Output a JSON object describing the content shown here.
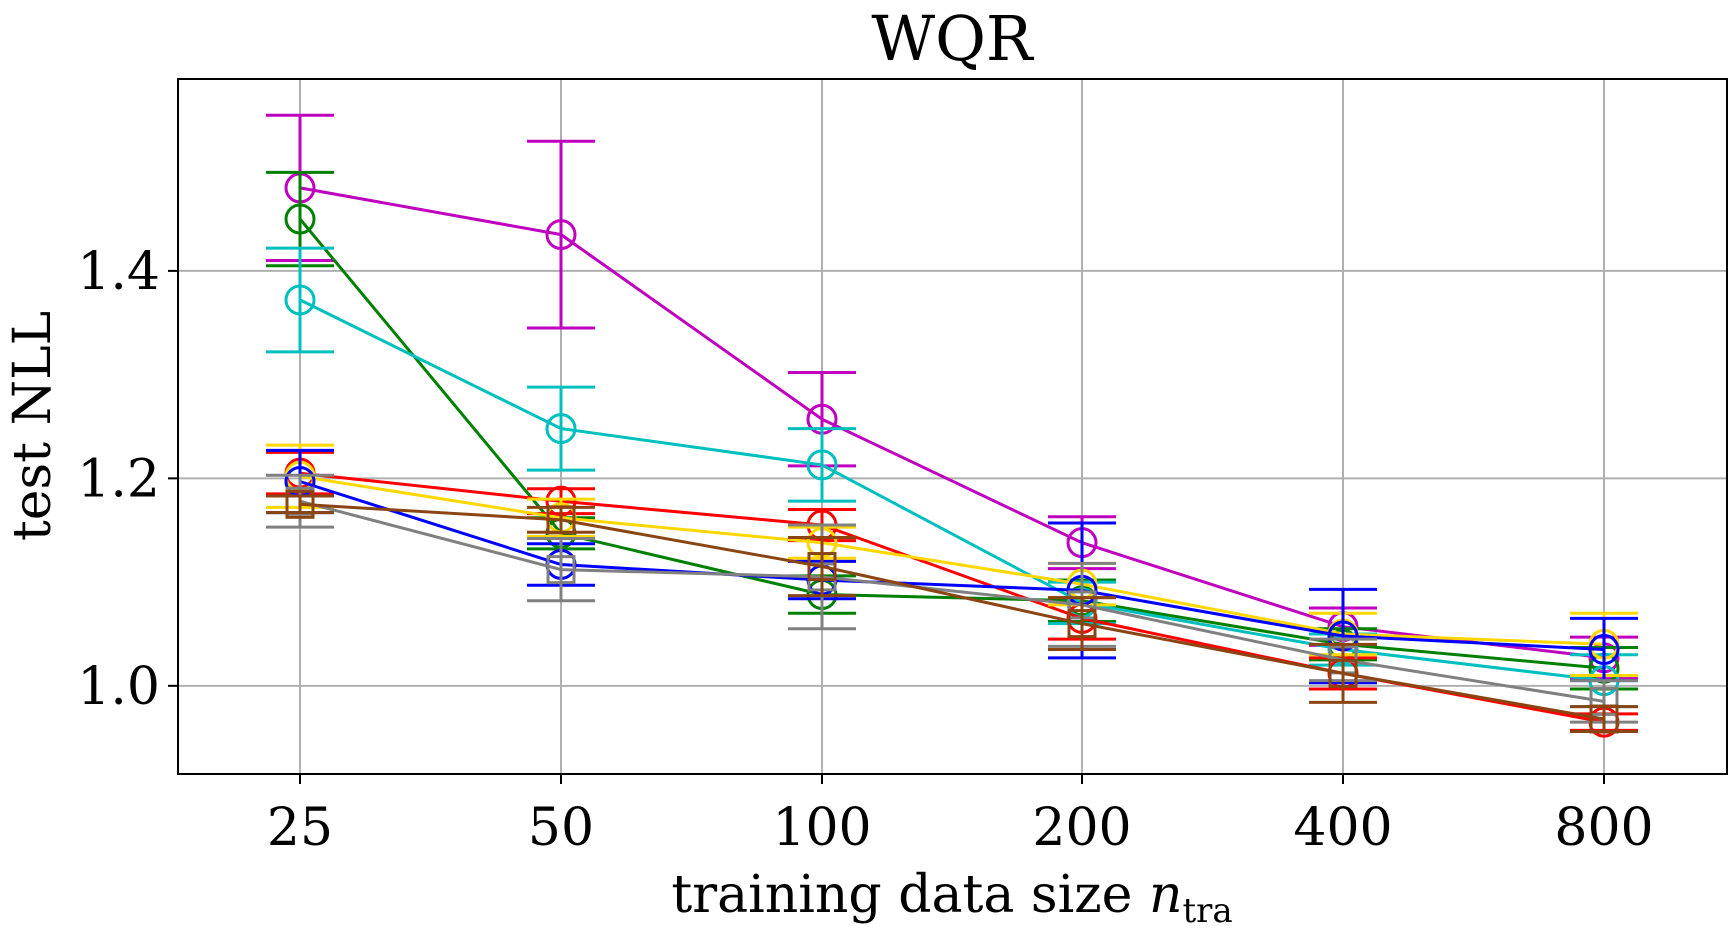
{
  "chart_data": {
    "type": "line",
    "title": "WQR",
    "xlabel": "training data size",
    "xlabel_symbol": "n",
    "xlabel_subscript": "tra",
    "ylabel": "test NLL",
    "categories": [
      "25",
      "50",
      "100",
      "200",
      "400",
      "800"
    ],
    "x": [
      25,
      50,
      100,
      200,
      400,
      800
    ],
    "xscale": "log2",
    "ylim": [
      0.915,
      1.585
    ],
    "yticks": [
      1.0,
      1.2,
      1.4
    ],
    "ytick_labels": [
      "1.0",
      "1.2",
      "1.4"
    ],
    "grid": true,
    "series": [
      {
        "name": "magenta",
        "color": "#bf00bf",
        "marker": "circle",
        "values": [
          1.48,
          1.435,
          1.257,
          1.138,
          1.057,
          1.027
        ],
        "errors": [
          0.07,
          0.09,
          0.045,
          0.025,
          0.018,
          0.02
        ]
      },
      {
        "name": "green",
        "color": "#008000",
        "marker": "circle",
        "values": [
          1.45,
          1.147,
          1.088,
          1.082,
          1.04,
          1.017
        ],
        "errors": [
          0.045,
          0.015,
          0.018,
          0.02,
          0.015,
          0.02
        ]
      },
      {
        "name": "cyan",
        "color": "#00bfbf",
        "marker": "circle",
        "values": [
          1.372,
          1.248,
          1.213,
          1.08,
          1.035,
          1.005
        ],
        "errors": [
          0.05,
          0.04,
          0.035,
          0.02,
          0.015,
          0.025
        ]
      },
      {
        "name": "red",
        "color": "#ff0000",
        "marker": "circle",
        "values": [
          1.205,
          1.178,
          1.155,
          1.065,
          1.012,
          0.965
        ],
        "errors": [
          0.02,
          0.012,
          0.015,
          0.02,
          0.015,
          0.008
        ]
      },
      {
        "name": "yellow",
        "color": "#ffd700",
        "marker": "circle",
        "values": [
          1.202,
          1.162,
          1.138,
          1.098,
          1.05,
          1.04
        ],
        "errors": [
          0.03,
          0.018,
          0.015,
          0.02,
          0.02,
          0.03
        ]
      },
      {
        "name": "blue",
        "color": "#0000ff",
        "marker": "circle",
        "values": [
          1.197,
          1.117,
          1.102,
          1.092,
          1.048,
          1.035
        ],
        "errors": [
          0.03,
          0.02,
          0.018,
          0.065,
          0.045,
          0.03
        ]
      },
      {
        "name": "gray",
        "color": "#808080",
        "marker": "square",
        "values": [
          1.178,
          1.112,
          1.105,
          1.078,
          1.025,
          0.985
        ],
        "errors": [
          0.025,
          0.03,
          0.05,
          0.04,
          0.02,
          0.02
        ]
      },
      {
        "name": "brown",
        "color": "#8b4513",
        "marker": "square",
        "values": [
          1.175,
          1.16,
          1.115,
          1.06,
          1.012,
          0.968
        ],
        "errors": [
          0.008,
          0.012,
          0.028,
          0.025,
          0.028,
          0.012
        ]
      }
    ]
  }
}
